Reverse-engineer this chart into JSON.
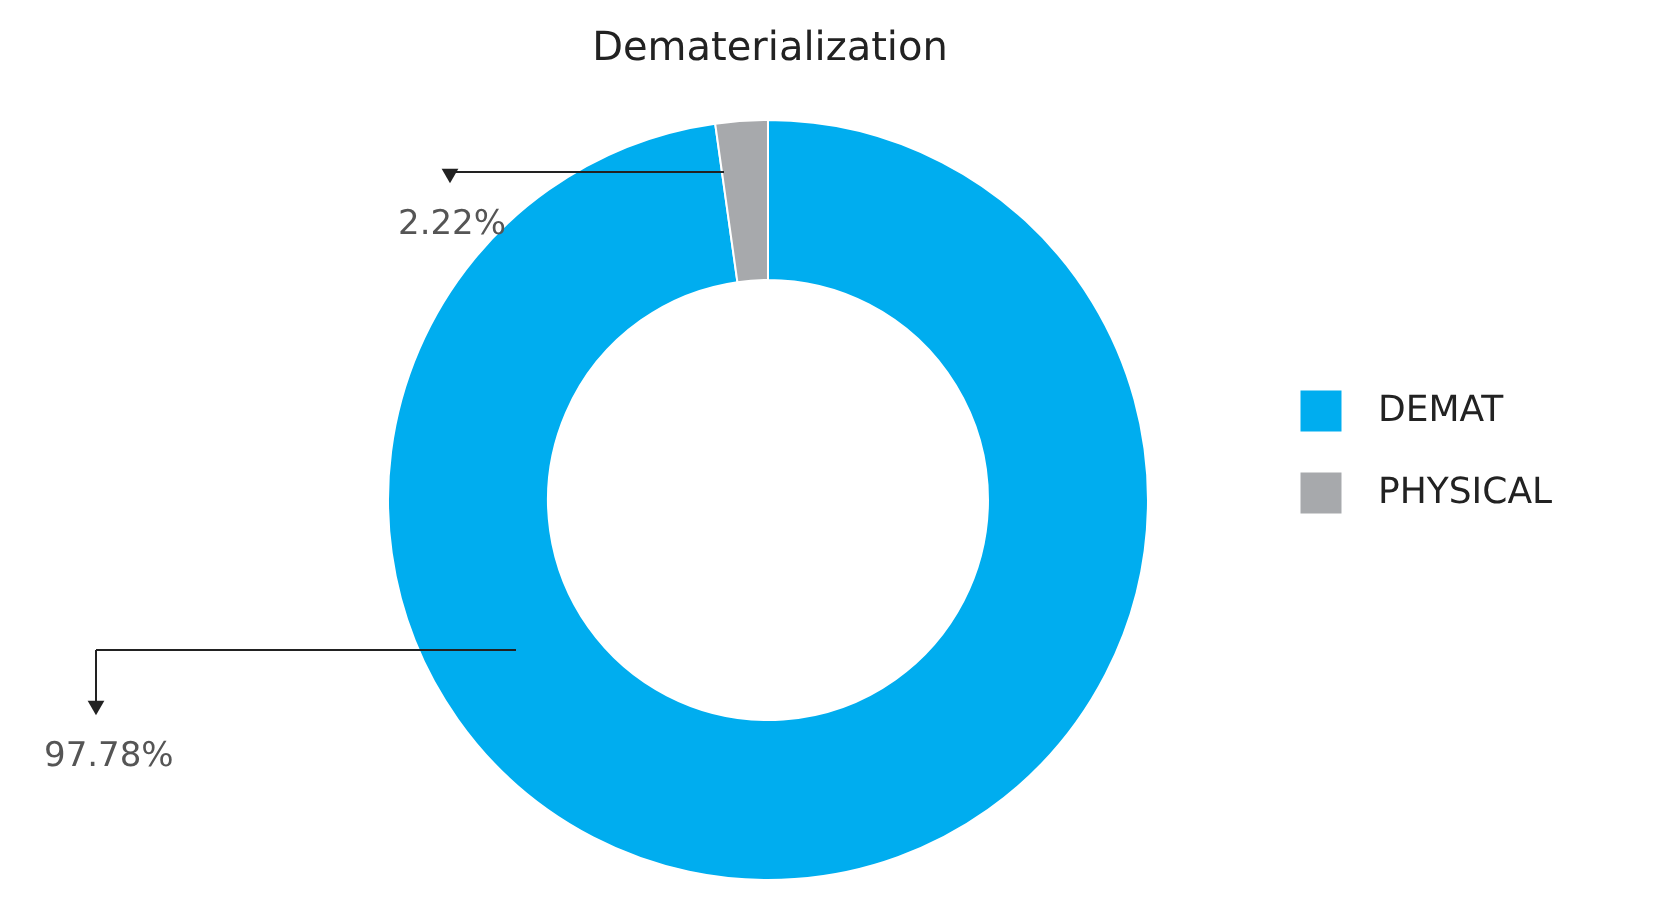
{
  "chart_data": {
    "type": "donut",
    "title": "Dematerialization",
    "categories": [
      "DEMAT",
      "PHYSICAL"
    ],
    "values": [
      97.78,
      2.22
    ],
    "colors": [
      "#00adef",
      "#a7a9ac"
    ],
    "value_labels": [
      "97.78%",
      "2.22%"
    ],
    "legend": "right"
  }
}
